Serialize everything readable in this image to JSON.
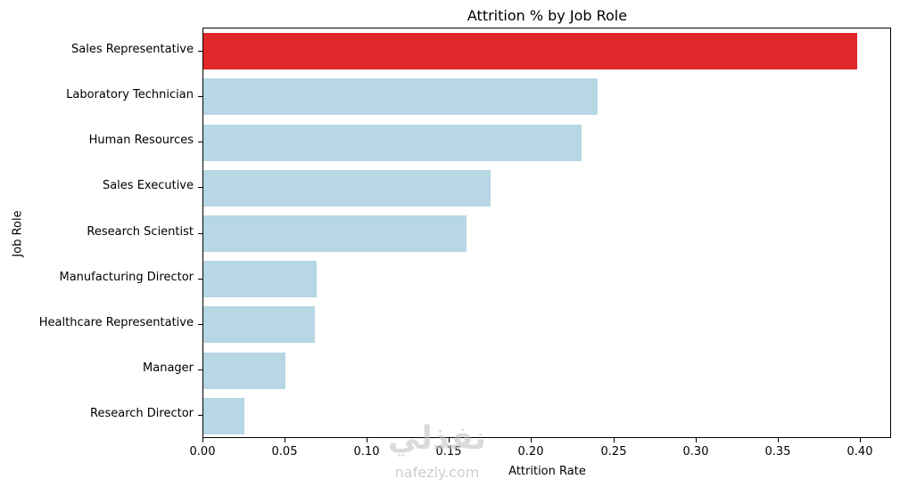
{
  "chart_data": {
    "type": "bar",
    "orientation": "horizontal",
    "title": "Attrition % by Job Role",
    "xlabel": "Attrition Rate",
    "ylabel": "Job Role",
    "categories": [
      "Sales Representative",
      "Laboratory Technician",
      "Human Resources",
      "Sales Executive",
      "Research Scientist",
      "Manufacturing Director",
      "Healthcare Representative",
      "Manager",
      "Research Director"
    ],
    "values": [
      0.398,
      0.24,
      0.23,
      0.175,
      0.16,
      0.069,
      0.068,
      0.05,
      0.025
    ],
    "bar_colors": [
      "#e12729",
      "#b7d7e4",
      "#b7d7e4",
      "#b7d7e4",
      "#b7d7e4",
      "#b7d7e4",
      "#b7d7e4",
      "#b7d7e4",
      "#b7d7e4"
    ],
    "highlight_color": "#e12729",
    "default_color": "#b7d7e4",
    "xlim": [
      0,
      0.418
    ],
    "xticks": [
      0.0,
      0.05,
      0.1,
      0.15,
      0.2,
      0.25,
      0.3,
      0.35,
      0.4
    ],
    "xtick_labels": [
      "0.00",
      "0.05",
      "0.10",
      "0.15",
      "0.20",
      "0.25",
      "0.30",
      "0.35",
      "0.40"
    ],
    "grid": false,
    "legend": null
  },
  "watermark": {
    "arabic": "نفذلي",
    "domain": "nafezly.com"
  }
}
